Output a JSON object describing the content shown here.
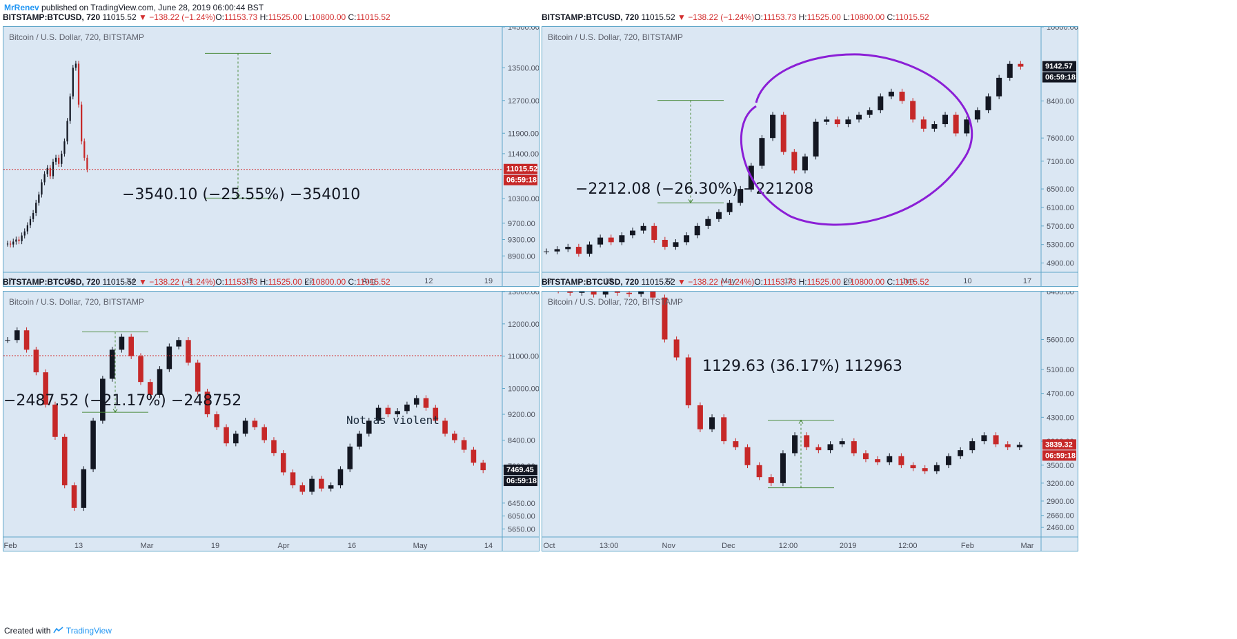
{
  "page_header": {
    "author": "MrRenev",
    "published_text": "published on TradingView.com, June 28, 2019 06:00:44 BST"
  },
  "footer": {
    "created_with": "Created with",
    "brand": "TradingView"
  },
  "colors": {
    "up_candle": "#131722",
    "down_candle": "#c62828",
    "chart_bg": "#dbe7f3",
    "border": "#5fa6c8",
    "drawing_green": "#4a8a3a",
    "drawing_purple": "#8b1fd6",
    "price_line": "#d32f2f"
  },
  "panels": [
    {
      "id": "top-left",
      "header": {
        "symbol": "BITSTAMP:BTCUSD, 720",
        "last": "11015.52",
        "change": "−138.22 (−1.24%)",
        "o_label": "O:",
        "o": "11153.73",
        "h_label": "H:",
        "h": "11525.00",
        "l_label": "L:",
        "l": "10800.00",
        "c_label": "C:",
        "c": "11015.52"
      },
      "symbol_label": "Bitcoin / U.S. Dollar, 720, BITSTAMP",
      "price_label": "11015.52",
      "timer_label": "06:59:18",
      "price_label_color": "#c62828",
      "measure_text": "−3540.10 (−25.55%) −354010",
      "chart_data": {
        "type": "candlestick",
        "title": "Bitcoin / U.S. Dollar, 720, BITSTAMP",
        "ylim": [
          8500,
          14500
        ],
        "x_ticks": [
          "7",
          "24",
          "Jul",
          "8",
          "15",
          "22",
          "Aug",
          "12",
          "19"
        ],
        "y_ticks": [
          "14500.00",
          "13500.00",
          "12700.00",
          "11900.00",
          "11400.00",
          "10300.00",
          "9700.00",
          "9300.00",
          "8900.00"
        ],
        "series": [
          {
            "close": [
              9200,
              9180,
              9250,
              9300,
              9260,
              9400,
              9500,
              9650,
              9800,
              9950,
              10200,
              10400,
              10700,
              10900,
              11050,
              10850,
              11200,
              11300,
              11150,
              11400,
              11700,
              12200,
              12800,
              13500,
              13600,
              12600,
              11700,
              11300,
              11015
            ]
          }
        ],
        "measure": {
          "from": 13853,
          "to": 10313,
          "change": "−3540.10 (−25.55%)"
        }
      }
    },
    {
      "id": "top-right",
      "header": {
        "symbol": "BITSTAMP:BTCUSD, 720",
        "last": "11015.52",
        "change": "−138.22 (−1.24%)",
        "o_label": "O:",
        "o": "11153.73",
        "h_label": "H:",
        "h": "11525.00",
        "l_label": "L:",
        "l": "10800.00",
        "c_label": "C:",
        "c": "11015.52"
      },
      "symbol_label": "Bitcoin / U.S. Dollar, 720, BITSTAMP",
      "price_label": "9142.57",
      "timer_label": "06:59:18",
      "price_label_color": "#131722",
      "measure_text": "−2212.08 (−26.30%) −221208",
      "chart_data": {
        "type": "candlestick",
        "title": "Bitcoin / U.S. Dollar, 720, BITSTAMP",
        "ylim": [
          4700,
          10000
        ],
        "x_ticks": [
          "8",
          "15",
          "22",
          "May",
          "13",
          "20",
          "Jun",
          "10",
          "17"
        ],
        "y_ticks": [
          "10000.00",
          "8400.00",
          "7600.00",
          "7100.00",
          "6500.00",
          "6100.00",
          "5700.00",
          "5300.00",
          "4900.00"
        ],
        "series": [
          {
            "close": [
              5150,
              5200,
              5250,
              5100,
              5300,
              5450,
              5350,
              5500,
              5600,
              5700,
              5400,
              5250,
              5350,
              5500,
              5700,
              5850,
              6000,
              6200,
              6500,
              7000,
              7600,
              8100,
              7300,
              6900,
              7200,
              7950,
              8000,
              7900,
              8000,
              8100,
              8200,
              8500,
              8600,
              8400,
              8000,
              7800,
              7900,
              8100,
              7700,
              8000,
              8200,
              8500,
              8900,
              9200,
              9142
            ]
          }
        ],
        "measure": {
          "from": 8412,
          "to": 6200,
          "change": "−2212.08 (−26.30%)"
        }
      }
    },
    {
      "id": "bottom-left",
      "header": {
        "symbol": "BITSTAMP:BTCUSD, 720",
        "last": "11015.52",
        "change": "−138.22 (−1.24%)",
        "o_label": "O:",
        "o": "11153.73",
        "h_label": "H:",
        "h": "11525.00",
        "l_label": "L:",
        "l": "10800.00",
        "c_label": "C:",
        "c": "11015.52"
      },
      "symbol_label": "Bitcoin / U.S. Dollar, 720, BITSTAMP",
      "price_label": "7469.45",
      "timer_label": "06:59:18",
      "price_label_color": "#131722",
      "measure_text": "−2487.52 (−21.17%) −248752",
      "note_text": "Not as violent",
      "chart_data": {
        "type": "candlestick",
        "title": "Bitcoin / U.S. Dollar, 720, BITSTAMP",
        "ylim": [
          5400,
          13000
        ],
        "x_ticks": [
          "Feb",
          "13",
          "Mar",
          "19",
          "Apr",
          "16",
          "May",
          "14"
        ],
        "y_ticks": [
          "13000.00",
          "12000.00",
          "11000.00",
          "10000.00",
          "9200.00",
          "8400.00",
          "7600.00",
          "6450.00",
          "6050.00",
          "5650.00"
        ],
        "series": [
          {
            "close": [
              11500,
              11800,
              11200,
              10500,
              9500,
              8500,
              7000,
              6300,
              7500,
              9000,
              10300,
              11200,
              11600,
              11000,
              10200,
              9800,
              10600,
              11300,
              11500,
              10800,
              9900,
              9200,
              8800,
              8300,
              8600,
              9000,
              8800,
              8400,
              8000,
              7400,
              7000,
              6800,
              7200,
              6900,
              7000,
              7500,
              8200,
              8600,
              9000,
              9400,
              9200,
              9300,
              9500,
              9700,
              9400,
              9000,
              8600,
              8400,
              8100,
              7700,
              7469
            ]
          }
        ],
        "measure": {
          "from": 11750,
          "to": 9262,
          "change": "−2487.52 (−21.17%)"
        }
      }
    },
    {
      "id": "bottom-right",
      "header": {
        "symbol": "BITSTAMP:BTCUSD, 720",
        "last": "11015.52",
        "change": "−138.22 (−1.24%)",
        "o_label": "O:",
        "o": "11153.73",
        "h_label": "H:",
        "h": "11525.00",
        "l_label": "L:",
        "l": "10800.00",
        "c_label": "C:",
        "c": "11015.52"
      },
      "symbol_label": "Bitcoin / U.S. Dollar, 720, BITSTAMP",
      "price_label": "3839.32",
      "timer_label": "06:59:18",
      "price_label_color": "#c62828",
      "measure_text": "1129.63 (36.17%) 112963",
      "chart_data": {
        "type": "candlestick",
        "title": "Bitcoin / U.S. Dollar, 720, BITSTAMP",
        "ylim": [
          2300,
          6400
        ],
        "x_ticks": [
          "Oct",
          "13:00",
          "Nov",
          "Dec",
          "12:00",
          "2019",
          "12:00",
          "Feb",
          "Mar"
        ],
        "y_ticks": [
          "6400.00",
          "5600.00",
          "5100.00",
          "4700.00",
          "4300.00",
          "3900.00",
          "3500.00",
          "3200.00",
          "2900.00",
          "2660.00",
          "2460.00"
        ],
        "series": [
          {
            "close": [
              6450,
              6420,
              6380,
              6400,
              6350,
              6420,
              6380,
              6360,
              6400,
              6300,
              5600,
              5300,
              4500,
              4100,
              4300,
              3900,
              3800,
              3500,
              3300,
              3200,
              3700,
              4000,
              3800,
              3750,
              3850,
              3900,
              3700,
              3600,
              3550,
              3650,
              3500,
              3450,
              3400,
              3500,
              3650,
              3750,
              3900,
              4000,
              3850,
              3800,
              3839
            ]
          }
        ],
        "measure": {
          "from": 3122,
          "to": 4251,
          "change": "1129.63 (36.17%)"
        }
      }
    }
  ]
}
